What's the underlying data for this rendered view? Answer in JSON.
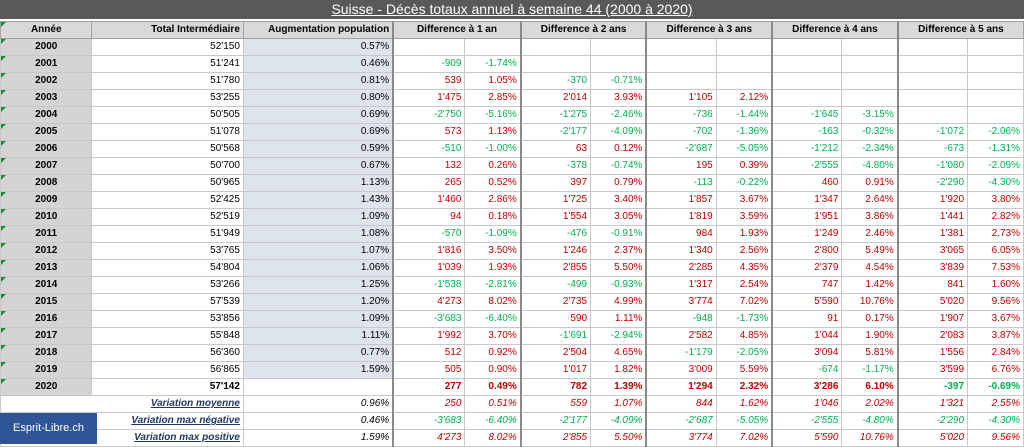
{
  "title": "Suisse - Décès totaux annuel à semaine 44 (2000 à 2020)",
  "brand": "Esprit-Libre.ch",
  "colors": {
    "positive": "#c00000",
    "negative": "#00b050",
    "header_bg": "#595959",
    "brand_bg": "#2f5597"
  },
  "headers": [
    "Année",
    "Total Intermédiaire",
    "Augmentation population",
    "Difference à 1 an",
    "Difference à 2 ans",
    "Difference à 3 ans",
    "Difference à 4 ans",
    "Difference à 5 ans"
  ],
  "rows": [
    {
      "year": "2000",
      "total": "52'150",
      "pop": "0.57%",
      "d": [
        [
          "",
          ""
        ],
        [
          "",
          ""
        ],
        [
          "",
          ""
        ],
        [
          "",
          ""
        ],
        [
          "",
          ""
        ]
      ]
    },
    {
      "year": "2001",
      "total": "51'241",
      "pop": "0.46%",
      "d": [
        [
          "-909",
          "-1.74%"
        ],
        [
          "",
          ""
        ],
        [
          "",
          ""
        ],
        [
          "",
          ""
        ],
        [
          "",
          ""
        ]
      ]
    },
    {
      "year": "2002",
      "total": "51'780",
      "pop": "0.81%",
      "d": [
        [
          "539",
          "1.05%"
        ],
        [
          "-370",
          "-0.71%"
        ],
        [
          "",
          ""
        ],
        [
          "",
          ""
        ],
        [
          "",
          ""
        ]
      ]
    },
    {
      "year": "2003",
      "total": "53'255",
      "pop": "0.80%",
      "d": [
        [
          "1'475",
          "2.85%"
        ],
        [
          "2'014",
          "3.93%"
        ],
        [
          "1'105",
          "2.12%"
        ],
        [
          "",
          ""
        ],
        [
          "",
          ""
        ]
      ]
    },
    {
      "year": "2004",
      "total": "50'505",
      "pop": "0.69%",
      "d": [
        [
          "-2'750",
          "-5.16%"
        ],
        [
          "-1'275",
          "-2.46%"
        ],
        [
          "-736",
          "-1.44%"
        ],
        [
          "-1'645",
          "-3.15%"
        ],
        [
          "",
          ""
        ]
      ]
    },
    {
      "year": "2005",
      "total": "51'078",
      "pop": "0.69%",
      "d": [
        [
          "573",
          "1.13%"
        ],
        [
          "-2'177",
          "-4.09%"
        ],
        [
          "-702",
          "-1.36%"
        ],
        [
          "-163",
          "-0.32%"
        ],
        [
          "-1'072",
          "-2.06%"
        ]
      ]
    },
    {
      "year": "2006",
      "total": "50'568",
      "pop": "0.59%",
      "d": [
        [
          "-510",
          "-1.00%"
        ],
        [
          "63",
          "0.12%"
        ],
        [
          "-2'687",
          "-5.05%"
        ],
        [
          "-1'212",
          "-2.34%"
        ],
        [
          "-673",
          "-1.31%"
        ]
      ]
    },
    {
      "year": "2007",
      "total": "50'700",
      "pop": "0.67%",
      "d": [
        [
          "132",
          "0.26%"
        ],
        [
          "-378",
          "-0.74%"
        ],
        [
          "195",
          "0.39%"
        ],
        [
          "-2'555",
          "-4.80%"
        ],
        [
          "-1'080",
          "-2.09%"
        ]
      ]
    },
    {
      "year": "2008",
      "total": "50'965",
      "pop": "1.13%",
      "d": [
        [
          "265",
          "0.52%"
        ],
        [
          "397",
          "0.79%"
        ],
        [
          "-113",
          "-0.22%"
        ],
        [
          "460",
          "0.91%"
        ],
        [
          "-2'290",
          "-4.30%"
        ]
      ]
    },
    {
      "year": "2009",
      "total": "52'425",
      "pop": "1.43%",
      "d": [
        [
          "1'460",
          "2.86%"
        ],
        [
          "1'725",
          "3.40%"
        ],
        [
          "1'857",
          "3.67%"
        ],
        [
          "1'347",
          "2.64%"
        ],
        [
          "1'920",
          "3.80%"
        ]
      ]
    },
    {
      "year": "2010",
      "total": "52'519",
      "pop": "1.09%",
      "d": [
        [
          "94",
          "0.18%"
        ],
        [
          "1'554",
          "3.05%"
        ],
        [
          "1'819",
          "3.59%"
        ],
        [
          "1'951",
          "3.86%"
        ],
        [
          "1'441",
          "2.82%"
        ]
      ]
    },
    {
      "year": "2011",
      "total": "51'949",
      "pop": "1.08%",
      "d": [
        [
          "-570",
          "-1.09%"
        ],
        [
          "-476",
          "-0.91%"
        ],
        [
          "984",
          "1.93%"
        ],
        [
          "1'249",
          "2.46%"
        ],
        [
          "1'381",
          "2.73%"
        ]
      ]
    },
    {
      "year": "2012",
      "total": "53'765",
      "pop": "1.07%",
      "d": [
        [
          "1'816",
          "3.50%"
        ],
        [
          "1'246",
          "2.37%"
        ],
        [
          "1'340",
          "2.56%"
        ],
        [
          "2'800",
          "5.49%"
        ],
        [
          "3'065",
          "6.05%"
        ]
      ]
    },
    {
      "year": "2013",
      "total": "54'804",
      "pop": "1.06%",
      "d": [
        [
          "1'039",
          "1.93%"
        ],
        [
          "2'855",
          "5.50%"
        ],
        [
          "2'285",
          "4.35%"
        ],
        [
          "2'379",
          "4.54%"
        ],
        [
          "3'839",
          "7.53%"
        ]
      ]
    },
    {
      "year": "2014",
      "total": "53'266",
      "pop": "1.25%",
      "d": [
        [
          "-1'538",
          "-2.81%"
        ],
        [
          "-499",
          "-0.93%"
        ],
        [
          "1'317",
          "2.54%"
        ],
        [
          "747",
          "1.42%"
        ],
        [
          "841",
          "1.60%"
        ]
      ]
    },
    {
      "year": "2015",
      "total": "57'539",
      "pop": "1.20%",
      "d": [
        [
          "4'273",
          "8.02%"
        ],
        [
          "2'735",
          "4.99%"
        ],
        [
          "3'774",
          "7.02%"
        ],
        [
          "5'590",
          "10.76%"
        ],
        [
          "5'020",
          "9.56%"
        ]
      ]
    },
    {
      "year": "2016",
      "total": "53'856",
      "pop": "1.09%",
      "d": [
        [
          "-3'683",
          "-6.40%"
        ],
        [
          "590",
          "1.11%"
        ],
        [
          "-948",
          "-1.73%"
        ],
        [
          "91",
          "0.17%"
        ],
        [
          "1'907",
          "3.67%"
        ]
      ]
    },
    {
      "year": "2017",
      "total": "55'848",
      "pop": "1.11%",
      "d": [
        [
          "1'992",
          "3.70%"
        ],
        [
          "-1'691",
          "-2.94%"
        ],
        [
          "2'582",
          "4.85%"
        ],
        [
          "1'044",
          "1.90%"
        ],
        [
          "2'083",
          "3.87%"
        ]
      ]
    },
    {
      "year": "2018",
      "total": "56'360",
      "pop": "0.77%",
      "d": [
        [
          "512",
          "0.92%"
        ],
        [
          "2'504",
          "4.65%"
        ],
        [
          "-1'179",
          "-2.05%"
        ],
        [
          "3'094",
          "5.81%"
        ],
        [
          "1'556",
          "2.84%"
        ]
      ]
    },
    {
      "year": "2019",
      "total": "56'865",
      "pop": "1.59%",
      "d": [
        [
          "505",
          "0.90%"
        ],
        [
          "1'017",
          "1.82%"
        ],
        [
          "3'009",
          "5.59%"
        ],
        [
          "-674",
          "-1.17%"
        ],
        [
          "3'599",
          "6.76%"
        ]
      ]
    },
    {
      "year": "2020",
      "total": "57'142",
      "pop": "",
      "d": [
        [
          "277",
          "0.49%"
        ],
        [
          "782",
          "1.39%"
        ],
        [
          "1'294",
          "2.32%"
        ],
        [
          "3'286",
          "6.10%"
        ],
        [
          "-397",
          "-0.69%"
        ]
      ]
    }
  ],
  "summary": [
    {
      "label": "Variation moyenne",
      "pop": "0.96%",
      "d": [
        [
          "250",
          "0.51%"
        ],
        [
          "559",
          "1.07%"
        ],
        [
          "844",
          "1.62%"
        ],
        [
          "1'046",
          "2.02%"
        ],
        [
          "1'321",
          "2.55%"
        ]
      ]
    },
    {
      "label": "Variation max négative",
      "pop": "0.46%",
      "d": [
        [
          "-3'683",
          "-6.40%"
        ],
        [
          "-2'177",
          "-4.09%"
        ],
        [
          "-2'687",
          "-5.05%"
        ],
        [
          "-2'555",
          "-4.80%"
        ],
        [
          "-2'290",
          "-4.30%"
        ]
      ]
    },
    {
      "label": "Variation max positive",
      "pop": "1.59%",
      "d": [
        [
          "4'273",
          "8.02%"
        ],
        [
          "2'855",
          "5.50%"
        ],
        [
          "3'774",
          "7.02%"
        ],
        [
          "5'590",
          "10.76%"
        ],
        [
          "5'020",
          "9.56%"
        ]
      ]
    }
  ]
}
